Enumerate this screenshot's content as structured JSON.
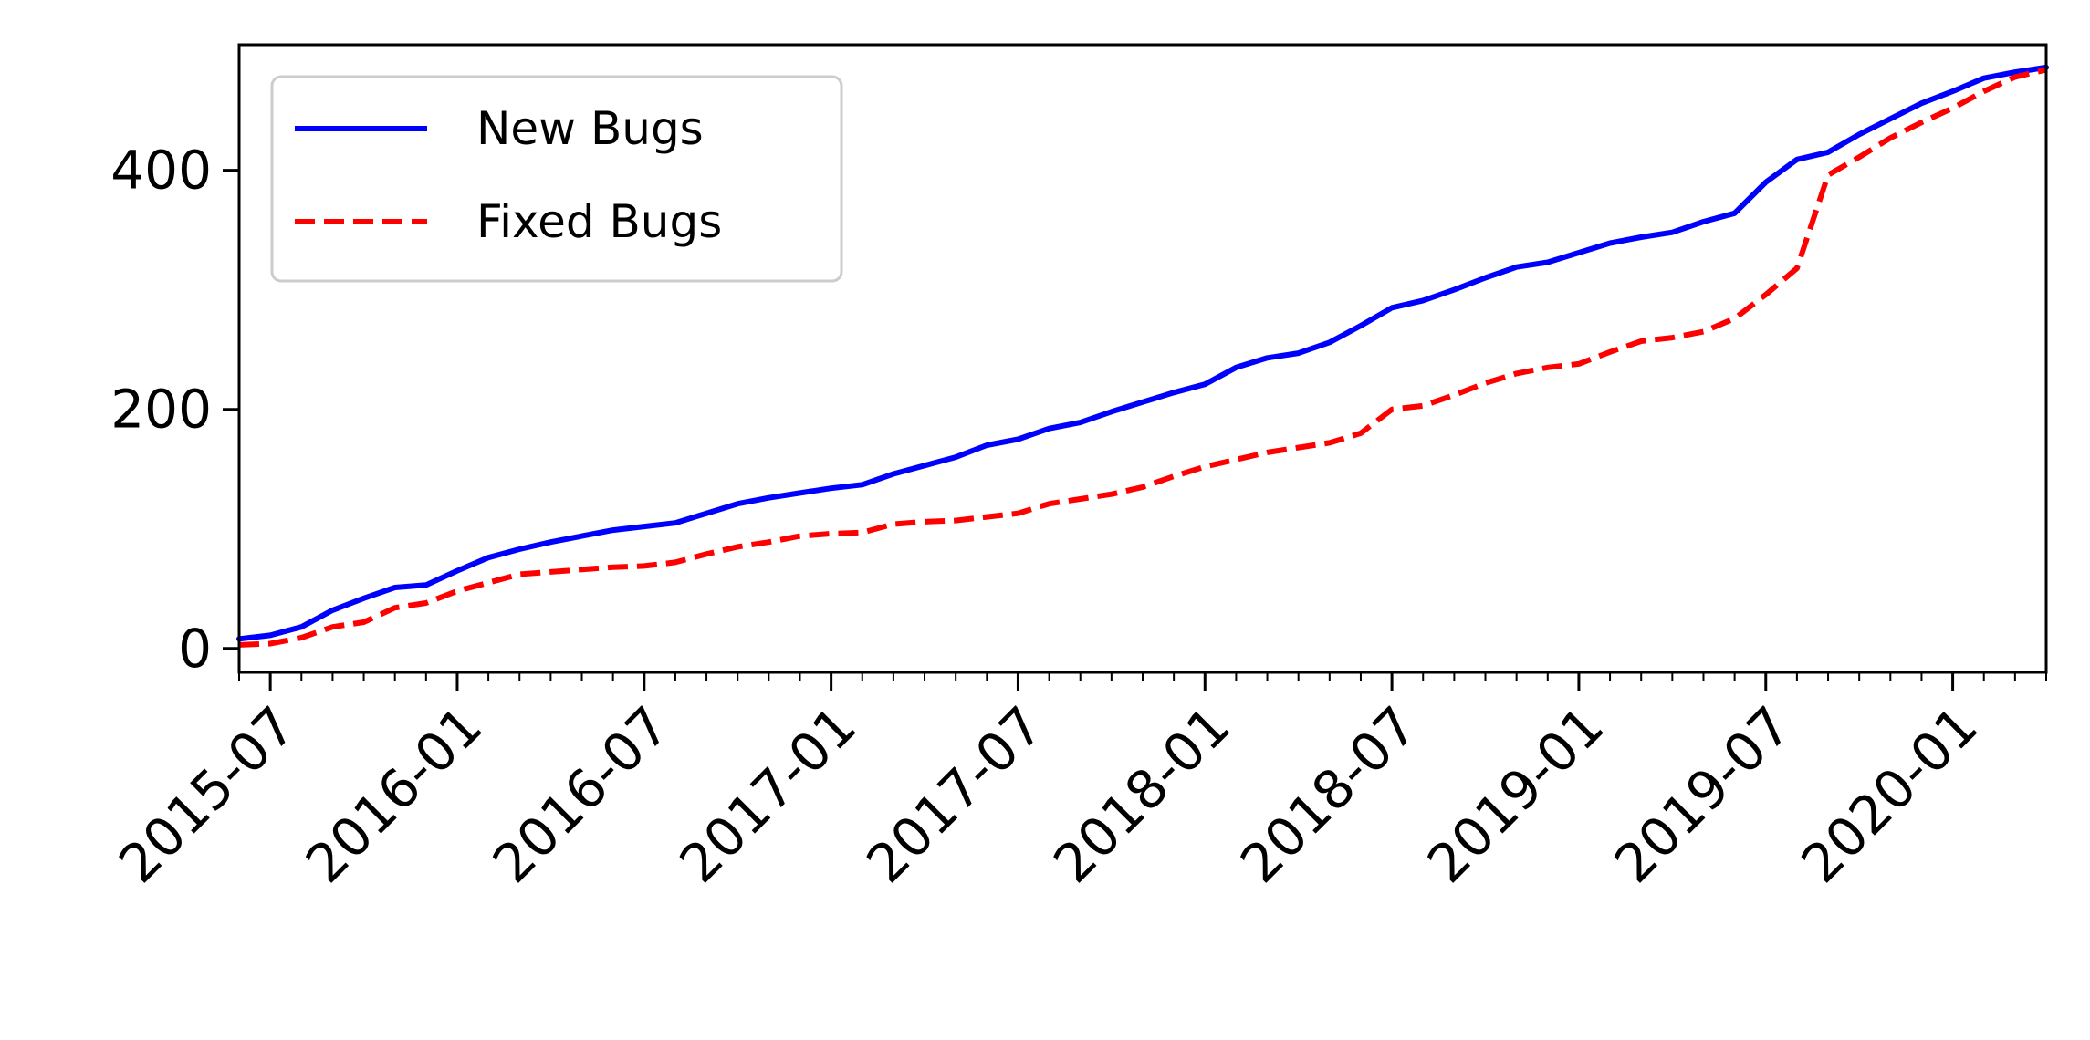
{
  "chart_data": {
    "type": "line",
    "title": "",
    "xlabel": "",
    "ylabel": "",
    "xlim": [
      "2015-06",
      "2020-04"
    ],
    "ylim": [
      -20,
      505
    ],
    "x_ticks": [
      "2015-07",
      "2016-01",
      "2016-07",
      "2017-01",
      "2017-07",
      "2018-01",
      "2018-07",
      "2019-01",
      "2019-07",
      "2020-01"
    ],
    "y_ticks": [
      0,
      200,
      400
    ],
    "grid": false,
    "legend_position": "top-left",
    "x": [
      "2015-06",
      "2015-07",
      "2015-08",
      "2015-09",
      "2015-10",
      "2015-11",
      "2015-12",
      "2016-01",
      "2016-02",
      "2016-03",
      "2016-04",
      "2016-05",
      "2016-06",
      "2016-07",
      "2016-08",
      "2016-09",
      "2016-10",
      "2016-11",
      "2016-12",
      "2017-01",
      "2017-02",
      "2017-03",
      "2017-04",
      "2017-05",
      "2017-06",
      "2017-07",
      "2017-08",
      "2017-09",
      "2017-10",
      "2017-11",
      "2017-12",
      "2018-01",
      "2018-02",
      "2018-03",
      "2018-04",
      "2018-05",
      "2018-06",
      "2018-07",
      "2018-08",
      "2018-09",
      "2018-10",
      "2018-11",
      "2018-12",
      "2019-01",
      "2019-02",
      "2019-03",
      "2019-04",
      "2019-05",
      "2019-06",
      "2019-07",
      "2019-08",
      "2019-09",
      "2019-10",
      "2019-11",
      "2019-12",
      "2020-01",
      "2020-02",
      "2020-03",
      "2020-04"
    ],
    "series": [
      {
        "name": "New Bugs",
        "color": "#0000ff",
        "dash": "solid",
        "values": [
          8,
          11,
          18,
          32,
          42,
          51,
          53,
          65,
          76,
          83,
          89,
          94,
          99,
          102,
          105,
          113,
          121,
          126,
          130,
          134,
          137,
          146,
          153,
          160,
          170,
          175,
          184,
          189,
          198,
          206,
          214,
          221,
          235,
          243,
          247,
          256,
          270,
          285,
          291,
          300,
          310,
          319,
          323,
          331,
          339,
          344,
          348,
          357,
          364,
          390,
          409,
          415,
          430,
          443,
          456,
          466,
          477,
          482,
          486
        ]
      },
      {
        "name": "Fixed Bugs",
        "color": "#ff0000",
        "dash": "dashed",
        "values": [
          3,
          4,
          9,
          18,
          22,
          34,
          38,
          48,
          55,
          62,
          64,
          66,
          68,
          69,
          72,
          79,
          85,
          89,
          94,
          96,
          97,
          104,
          106,
          107,
          110,
          113,
          121,
          125,
          129,
          135,
          144,
          152,
          158,
          164,
          168,
          172,
          180,
          200,
          203,
          212,
          222,
          230,
          235,
          238,
          248,
          257,
          260,
          265,
          276,
          296,
          318,
          396,
          411,
          427,
          440,
          452,
          466,
          478,
          484
        ]
      }
    ]
  }
}
